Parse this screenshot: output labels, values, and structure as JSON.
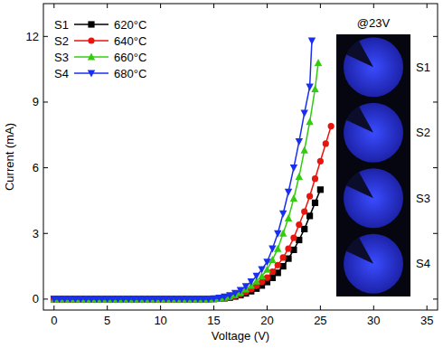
{
  "chart_data": {
    "type": "line",
    "x_label": "Voltage (V)",
    "y_label": "Current (mA)",
    "xlim": [
      -1,
      36
    ],
    "xticks": [
      0,
      5,
      10,
      15,
      20,
      25,
      30,
      35
    ],
    "ylim": [
      -0.5,
      13.5
    ],
    "yticks": [
      0,
      3,
      6,
      9,
      12
    ],
    "grid": false,
    "legend": "top-left",
    "annotations": {
      "inset_title": "@23V",
      "inset_labels": [
        "S1",
        "S2",
        "S3",
        "S4"
      ]
    },
    "series": [
      {
        "name": "S1",
        "label": "620°C",
        "color": "#000000",
        "marker": "square",
        "x": [
          0,
          0.5,
          1,
          1.5,
          2,
          2.5,
          3,
          3.5,
          4,
          4.5,
          5,
          5.5,
          6,
          6.5,
          7,
          7.5,
          8,
          8.5,
          9,
          9.5,
          10,
          10.5,
          11,
          11.5,
          12,
          12.5,
          13,
          13.5,
          14,
          14.5,
          15,
          15.5,
          16,
          16.5,
          17,
          17.5,
          18,
          18.5,
          19,
          19.5,
          20,
          20.5,
          21,
          21.5,
          22,
          22.5,
          23,
          23.5,
          24,
          24.5,
          25
        ],
        "values": [
          0,
          0,
          0,
          0,
          0,
          0,
          0,
          0,
          0,
          0,
          0,
          0,
          0,
          0,
          0,
          0,
          0,
          0,
          0,
          0,
          0,
          0,
          0,
          0,
          0,
          0,
          0,
          0,
          0,
          0,
          0.01,
          0.02,
          0.04,
          0.07,
          0.12,
          0.18,
          0.26,
          0.36,
          0.48,
          0.62,
          0.78,
          0.97,
          1.2,
          1.5,
          1.85,
          2.25,
          2.7,
          3.2,
          3.8,
          4.4,
          5.0
        ]
      },
      {
        "name": "S2",
        "label": "640°C",
        "color": "#e8150f",
        "marker": "circle",
        "x": [
          0,
          0.5,
          1,
          1.5,
          2,
          2.5,
          3,
          3.5,
          4,
          4.5,
          5,
          5.5,
          6,
          6.5,
          7,
          7.5,
          8,
          8.5,
          9,
          9.5,
          10,
          10.5,
          11,
          11.5,
          12,
          12.5,
          13,
          13.5,
          14,
          14.5,
          15,
          15.5,
          16,
          16.5,
          17,
          17.5,
          18,
          18.5,
          19,
          19.5,
          20,
          20.5,
          21,
          21.5,
          22,
          22.5,
          23,
          23.5,
          24,
          24.5,
          25,
          25.5,
          26
        ],
        "values": [
          0,
          0,
          0,
          0,
          0,
          0,
          0,
          0,
          0,
          0,
          0,
          0,
          0,
          0,
          0,
          0,
          0,
          0,
          0,
          0,
          0,
          0,
          0,
          0,
          0,
          0,
          0,
          0,
          0,
          0,
          0.01,
          0.02,
          0.05,
          0.09,
          0.15,
          0.23,
          0.33,
          0.45,
          0.6,
          0.78,
          0.98,
          1.25,
          1.55,
          1.9,
          2.3,
          2.8,
          3.4,
          4.0,
          4.7,
          5.5,
          6.3,
          7.1,
          7.9
        ]
      },
      {
        "name": "S3",
        "label": "660°C",
        "color": "#33cc11",
        "marker": "triangle-up",
        "x": [
          0,
          0.5,
          1,
          1.5,
          2,
          2.5,
          3,
          3.5,
          4,
          4.5,
          5,
          5.5,
          6,
          6.5,
          7,
          7.5,
          8,
          8.5,
          9,
          9.5,
          10,
          10.5,
          11,
          11.5,
          12,
          12.5,
          13,
          13.5,
          14,
          14.5,
          15,
          15.5,
          16,
          16.5,
          17,
          17.5,
          18,
          18.5,
          19,
          19.5,
          20,
          20.5,
          21,
          21.5,
          22,
          22.5,
          23,
          23.5,
          24,
          24.5,
          24.8
        ],
        "values": [
          0,
          0,
          0,
          0,
          0,
          0,
          0,
          0,
          0,
          0,
          0,
          0,
          0,
          0,
          0,
          0,
          0,
          0,
          0,
          0,
          0,
          0,
          0,
          0,
          0,
          0,
          0,
          0,
          0,
          0,
          0.01,
          0.03,
          0.07,
          0.12,
          0.2,
          0.3,
          0.45,
          0.62,
          0.82,
          1.05,
          1.35,
          1.8,
          2.3,
          3.0,
          3.7,
          4.6,
          5.6,
          6.8,
          8.1,
          9.6,
          10.8
        ]
      },
      {
        "name": "S4",
        "label": "680°C",
        "color": "#1a2ef0",
        "marker": "triangle-down",
        "x": [
          0,
          0.5,
          1,
          1.5,
          2,
          2.5,
          3,
          3.5,
          4,
          4.5,
          5,
          5.5,
          6,
          6.5,
          7,
          7.5,
          8,
          8.5,
          9,
          9.5,
          10,
          10.5,
          11,
          11.5,
          12,
          12.5,
          13,
          13.5,
          14,
          14.5,
          15,
          15.5,
          16,
          16.5,
          17,
          17.5,
          18,
          18.5,
          19,
          19.5,
          20,
          20.5,
          21,
          21.5,
          22,
          22.5,
          23,
          23.5,
          24,
          24.2
        ],
        "values": [
          0,
          0,
          0,
          0,
          0,
          0,
          0,
          0,
          0,
          0,
          0,
          0,
          0,
          0,
          0,
          0,
          0,
          0,
          0,
          0,
          0,
          0,
          0,
          0,
          0,
          0,
          0,
          0,
          0,
          0,
          0.02,
          0.05,
          0.1,
          0.17,
          0.27,
          0.4,
          0.58,
          0.8,
          1.05,
          1.35,
          1.7,
          2.3,
          3.0,
          3.9,
          4.9,
          6.0,
          7.2,
          8.5,
          9.7,
          11.8
        ]
      }
    ]
  }
}
